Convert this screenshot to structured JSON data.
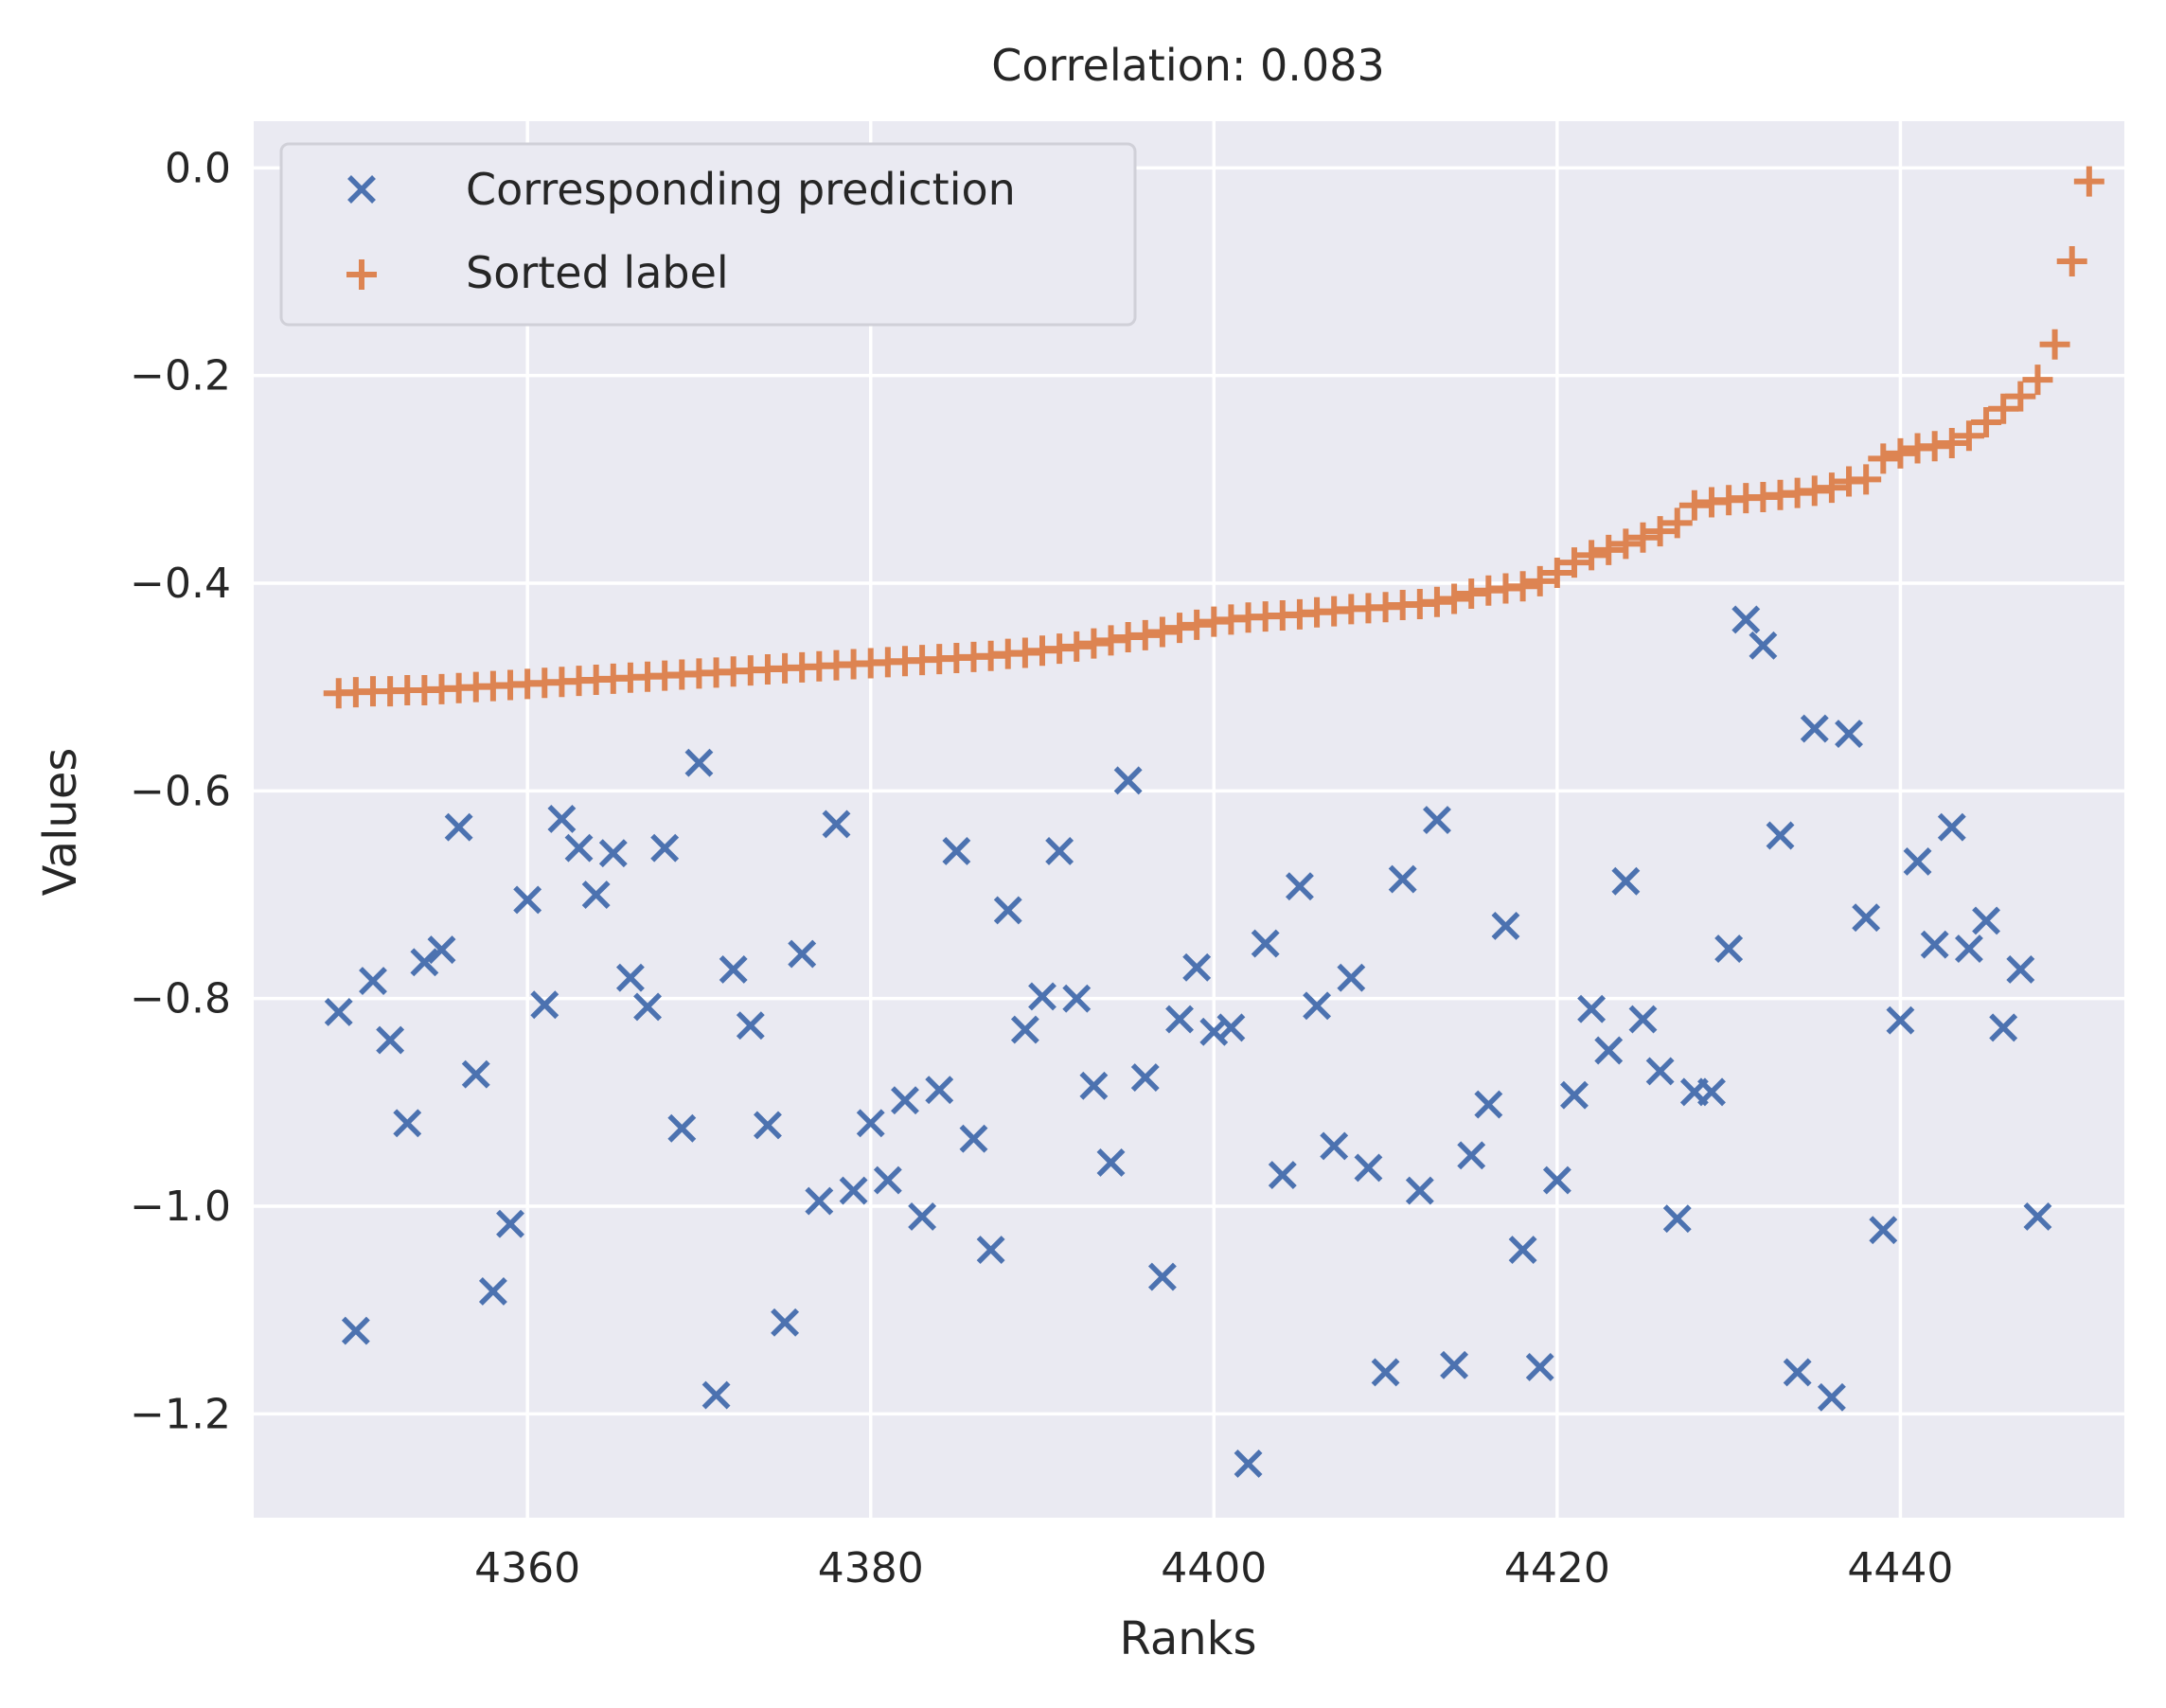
{
  "chart_data": {
    "type": "scatter",
    "title": "Correlation: 0.083",
    "xlabel": "Ranks",
    "ylabel": "Values",
    "xlim": [
      4344.05,
      4453.05
    ],
    "ylim": [
      -1.3,
      0.045
    ],
    "xticks": [
      4360,
      4380,
      4400,
      4420,
      4440
    ],
    "yticks": [
      0.0,
      -0.2,
      -0.4,
      -0.6,
      -0.8,
      -1.0,
      -1.2
    ],
    "ytick_labels": [
      "0.0",
      "−0.2",
      "−0.4",
      "−0.6",
      "−0.8",
      "−1.0",
      "−1.2"
    ],
    "grid": true,
    "legend_position": "top-left",
    "x_start": 4349,
    "series": [
      {
        "name": "Corresponding prediction",
        "marker": "x",
        "color": "#4c72b0",
        "values": [
          -0.813,
          -1.12,
          -0.783,
          -0.84,
          -0.92,
          -0.765,
          -0.753,
          -0.635,
          -0.873,
          -1.082,
          -1.017,
          -0.705,
          -0.806,
          -0.627,
          -0.655,
          -0.7,
          -0.66,
          -0.78,
          -0.808,
          -0.655,
          -0.925,
          -0.573,
          -1.182,
          -0.772,
          -0.826,
          -0.922,
          -1.112,
          -0.757,
          -0.995,
          -0.632,
          -0.985,
          -0.92,
          -0.975,
          -0.898,
          -1.01,
          -0.888,
          -0.658,
          -0.935,
          -1.042,
          -0.715,
          -0.83,
          -0.798,
          -0.658,
          -0.8,
          -0.884,
          -0.958,
          -0.59,
          -0.876,
          -1.068,
          -0.82,
          -0.77,
          -0.832,
          -0.828,
          -1.248,
          -0.747,
          -0.97,
          -0.692,
          -0.807,
          -0.942,
          -0.78,
          -0.963,
          -1.16,
          -0.685,
          -0.985,
          -0.628,
          -1.153,
          -0.951,
          -0.902,
          -0.73,
          -1.042,
          -1.155,
          -0.975,
          -0.893,
          -0.81,
          -0.85,
          -0.687,
          -0.82,
          -0.87,
          -1.012,
          -0.89,
          -0.89,
          -0.752,
          -0.435,
          -0.46,
          -0.643,
          -1.16,
          -0.54,
          -1.184,
          -0.545,
          -0.722,
          -1.023,
          -0.821,
          -0.668,
          -0.748,
          -0.635,
          -0.752,
          -0.725,
          -0.828,
          -0.772,
          -1.01
        ]
      },
      {
        "name": "Sorted label",
        "marker": "+",
        "color": "#dd8452",
        "values": [
          -0.506,
          -0.505,
          -0.504,
          -0.504,
          -0.503,
          -0.503,
          -0.502,
          -0.501,
          -0.5,
          -0.499,
          -0.498,
          -0.497,
          -0.496,
          -0.495,
          -0.494,
          -0.493,
          -0.492,
          -0.491,
          -0.49,
          -0.489,
          -0.488,
          -0.487,
          -0.486,
          -0.485,
          -0.484,
          -0.483,
          -0.482,
          -0.481,
          -0.48,
          -0.479,
          -0.478,
          -0.477,
          -0.476,
          -0.475,
          -0.474,
          -0.473,
          -0.472,
          -0.471,
          -0.47,
          -0.468,
          -0.467,
          -0.465,
          -0.463,
          -0.461,
          -0.458,
          -0.455,
          -0.452,
          -0.45,
          -0.447,
          -0.443,
          -0.44,
          -0.437,
          -0.435,
          -0.433,
          -0.432,
          -0.431,
          -0.43,
          -0.428,
          -0.427,
          -0.425,
          -0.424,
          -0.423,
          -0.421,
          -0.42,
          -0.418,
          -0.415,
          -0.41,
          -0.407,
          -0.405,
          -0.403,
          -0.398,
          -0.39,
          -0.38,
          -0.373,
          -0.368,
          -0.362,
          -0.356,
          -0.35,
          -0.342,
          -0.325,
          -0.322,
          -0.32,
          -0.318,
          -0.317,
          -0.315,
          -0.313,
          -0.311,
          -0.308,
          -0.302,
          -0.3,
          -0.28,
          -0.275,
          -0.27,
          -0.268,
          -0.265,
          -0.258,
          -0.245,
          -0.232,
          -0.22,
          -0.204,
          -0.17,
          -0.09,
          -0.013
        ]
      }
    ]
  }
}
